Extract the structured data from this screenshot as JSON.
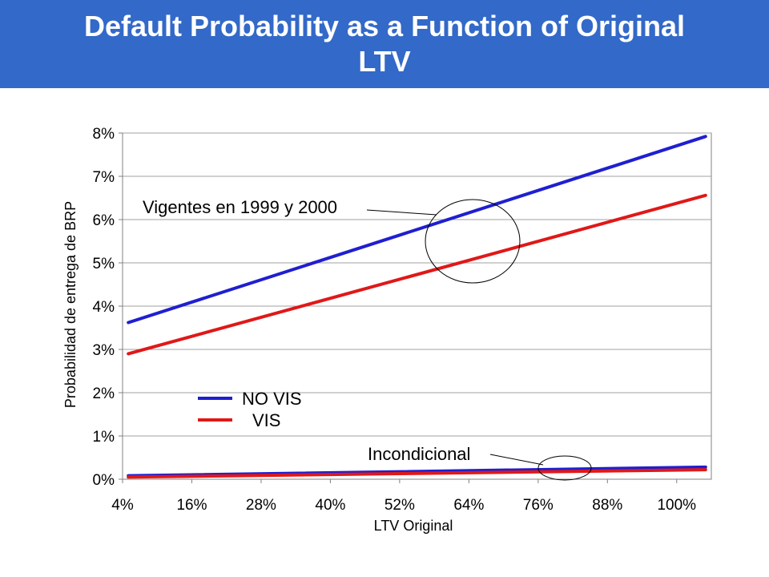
{
  "slide": {
    "title": "Default Probability as a Function of Original LTV"
  },
  "colors": {
    "title_bar": "#3369c8",
    "no_vis": "#1f1fd0",
    "vis": "#e01818"
  },
  "chart_data": {
    "type": "line",
    "title": "",
    "xlabel": "LTV Original",
    "ylabel": "Probabilidad de entrega de BRP",
    "x_tick_labels": [
      "4%",
      "16%",
      "28%",
      "40%",
      "52%",
      "64%",
      "76%",
      "88%",
      "100%"
    ],
    "x_ticks": [
      4,
      16,
      28,
      40,
      52,
      64,
      76,
      88,
      100
    ],
    "xlim": [
      4,
      106
    ],
    "y_tick_labels": [
      "0%",
      "1%",
      "2%",
      "3%",
      "4%",
      "5%",
      "6%",
      "7%",
      "8%"
    ],
    "y_ticks": [
      0,
      1,
      2,
      3,
      4,
      5,
      6,
      7,
      8
    ],
    "ylim": [
      0,
      8
    ],
    "grid": "horizontal",
    "legend": {
      "position": "middle-left",
      "entries": [
        {
          "label": "NO VIS",
          "color": "#1f1fd0"
        },
        {
          "label": "VIS",
          "color": "#e01818"
        }
      ]
    },
    "series": [
      {
        "name": "NO VIS",
        "group": "Vigentes en 1999 y 2000",
        "color": "#1f1fd0",
        "x": [
          5,
          105
        ],
        "y": [
          3.62,
          7.92
        ]
      },
      {
        "name": "VIS",
        "group": "Vigentes en 1999 y 2000",
        "color": "#e01818",
        "x": [
          5,
          105
        ],
        "y": [
          2.9,
          6.56
        ]
      },
      {
        "name": "NO VIS",
        "group": "Incondicional",
        "color": "#1f1fd0",
        "x": [
          5,
          105
        ],
        "y": [
          0.08,
          0.28
        ]
      },
      {
        "name": "VIS",
        "group": "Incondicional",
        "color": "#e01818",
        "x": [
          5,
          105
        ],
        "y": [
          0.05,
          0.22
        ]
      }
    ],
    "annotations": [
      {
        "text": "Vigentes en  1999 y 2000",
        "target": "upper lines"
      },
      {
        "text": "Incondicional",
        "target": "lower lines"
      }
    ]
  }
}
